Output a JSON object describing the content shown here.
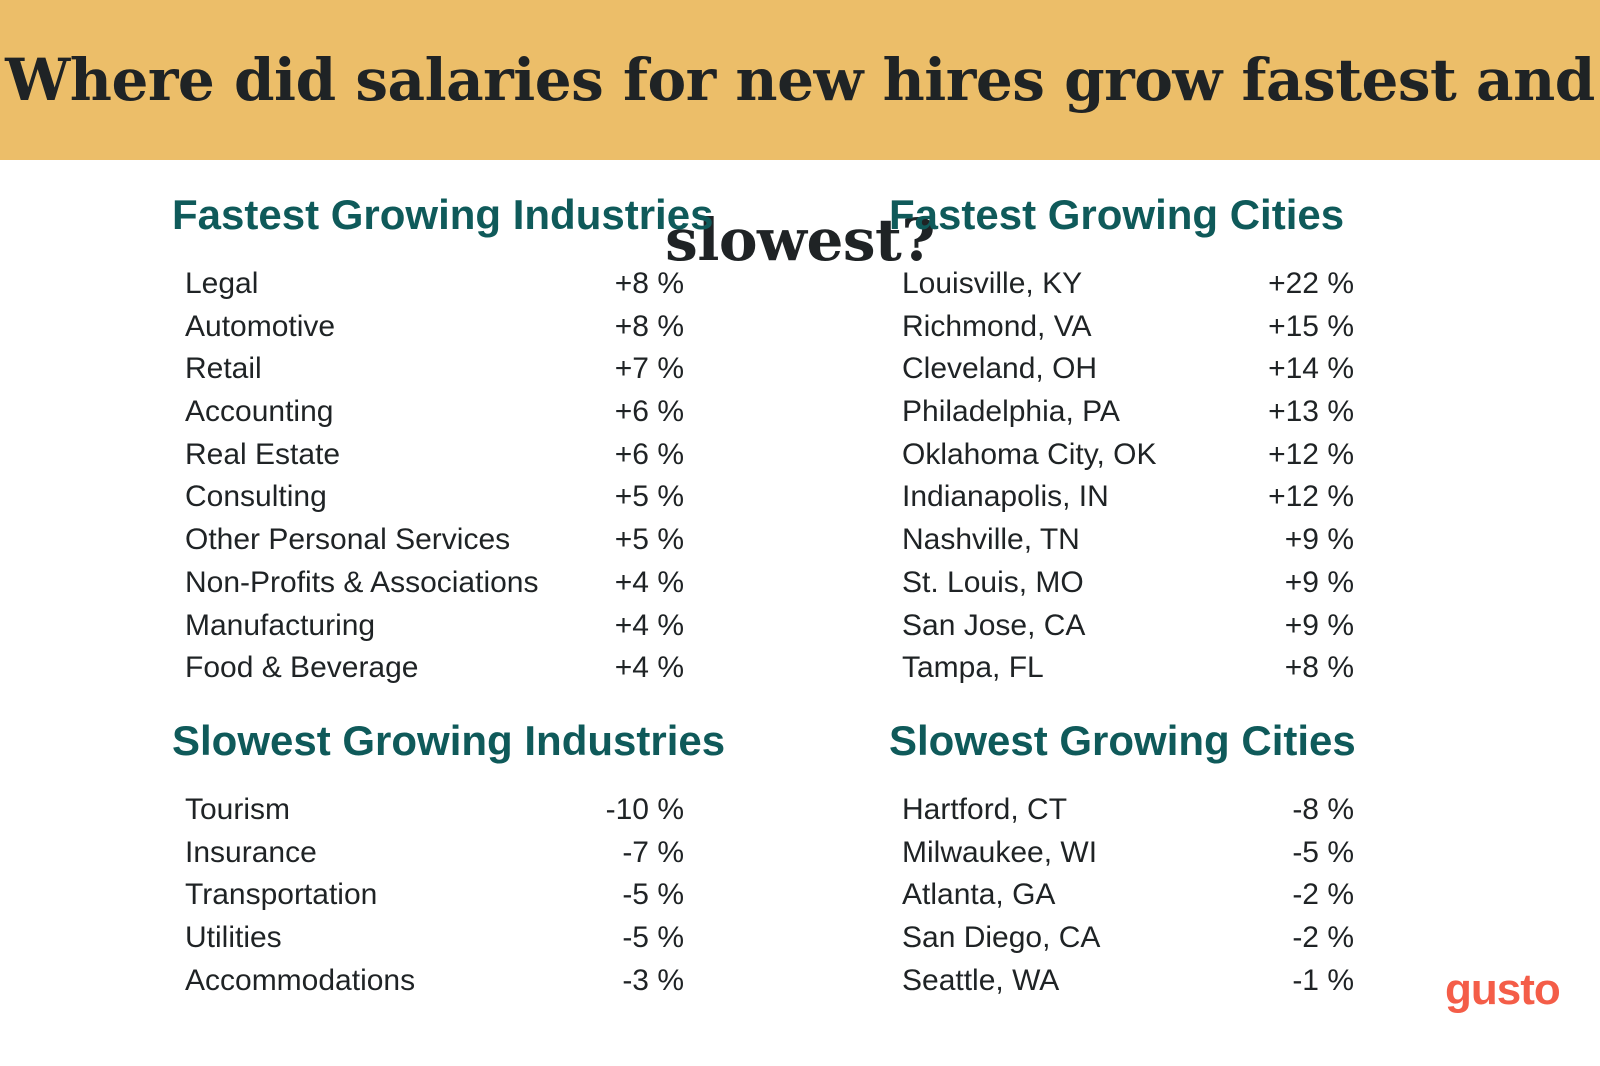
{
  "header": {
    "title": "Where did salaries for new hires grow fastest and slowest?"
  },
  "colors": {
    "banner": "#ecbe69",
    "heading": "#0f5a5a",
    "text": "#1f2325",
    "logo": "#f45d48"
  },
  "logo": {
    "text": "gusto"
  },
  "chart_data": [
    {
      "type": "table",
      "title": "Fastest Growing Industries",
      "categories": [
        "Legal",
        "Automotive",
        "Retail",
        "Accounting",
        "Real Estate",
        "Consulting",
        "Other Personal Services",
        "Non-Profits & Associations",
        "Manufacturing",
        "Food & Beverage"
      ],
      "values": [
        8,
        8,
        7,
        6,
        6,
        5,
        5,
        4,
        4,
        4
      ],
      "labels": [
        "+8 %",
        "+8 %",
        "+7 %",
        "+6 %",
        "+6 %",
        "+5 %",
        "+5 %",
        "+4 %",
        "+4 %",
        "+4 %"
      ]
    },
    {
      "type": "table",
      "title": "Fastest Growing Cities",
      "categories": [
        "Louisville, KY",
        "Richmond, VA",
        "Cleveland, OH",
        "Philadelphia, PA",
        "Oklahoma City, OK",
        "Indianapolis, IN",
        "Nashville, TN",
        "St. Louis, MO",
        "San Jose, CA",
        "Tampa, FL"
      ],
      "values": [
        22,
        15,
        14,
        13,
        12,
        12,
        9,
        9,
        9,
        8
      ],
      "labels": [
        "+22 %",
        "+15 %",
        "+14 %",
        "+13 %",
        "+12 %",
        "+12 %",
        "+9 %",
        "+9 %",
        "+9 %",
        "+8 %"
      ]
    },
    {
      "type": "table",
      "title": "Slowest Growing Industries",
      "categories": [
        "Tourism",
        "Insurance",
        "Transportation",
        "Utilities",
        "Accommodations"
      ],
      "values": [
        -10,
        -7,
        -5,
        -5,
        -3
      ],
      "labels": [
        "-10 %",
        "-7 %",
        "-5 %",
        "-5 %",
        "-3 %"
      ]
    },
    {
      "type": "table",
      "title": "Slowest Growing Cities",
      "categories": [
        "Hartford, CT",
        "Milwaukee, WI",
        "Atlanta, GA",
        "San Diego, CA",
        "Seattle, WA"
      ],
      "values": [
        -8,
        -5,
        -2,
        -2,
        -1
      ],
      "labels": [
        "-8 %",
        "-5 %",
        "-2 %",
        "-2 %",
        "-1 %"
      ]
    }
  ]
}
